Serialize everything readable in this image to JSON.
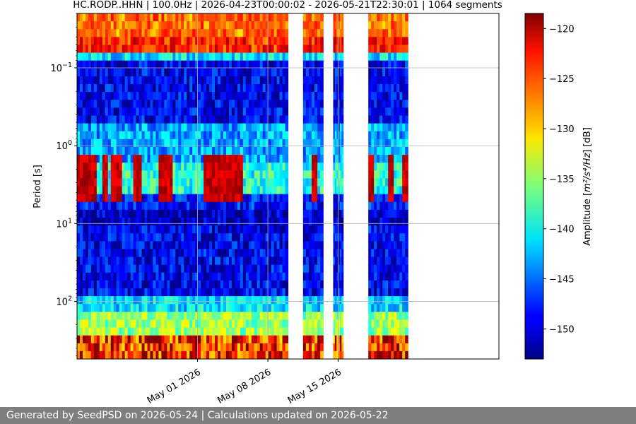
{
  "chart_data": {
    "type": "heatmap",
    "title": "HC.RODP..HHN | 100.0Hz | 2026-04-23T00:00:02 - 2026-05-21T22:30:01 | 1064 segments",
    "ylabel": "Period [s]",
    "y_scale": "log",
    "y_inverted": true,
    "ylim": [
      0.02,
      550
    ],
    "y_ticks": [
      {
        "value": 0.1,
        "base": "10",
        "exp": "−1"
      },
      {
        "value": 1,
        "base": "10",
        "exp": "0"
      },
      {
        "value": 10,
        "base": "10",
        "exp": "1"
      },
      {
        "value": 100,
        "base": "10",
        "exp": "2"
      }
    ],
    "x_start": "2026-04-23T00:00:02",
    "x_end": "2026-05-21T22:30:01",
    "xlim": [
      "2026-04-19",
      "2026-05-31"
    ],
    "x_ticks": [
      {
        "date": "2026-05-01",
        "label": "May 01 2026"
      },
      {
        "date": "2026-05-08",
        "label": "May 08 2026"
      },
      {
        "date": "2026-05-15",
        "label": "May 15 2026"
      }
    ],
    "grid": true,
    "colorbar": {
      "label_pre": "Amplitude [",
      "label_math": "m²/s⁴/Hz",
      "label_post": "] [dB]",
      "vmin": -153,
      "vmax": -118.5,
      "ticks": [
        "−120",
        "−125",
        "−130",
        "−135",
        "−140",
        "−145",
        "−150"
      ],
      "tick_values": [
        -120,
        -125,
        -130,
        -135,
        -140,
        -145,
        -150
      ],
      "colormap": "jet"
    },
    "data_intervals": [
      [
        "2026-04-19",
        "2026-05-10"
      ],
      [
        "2026-05-11T12:00",
        "2026-05-13T12:00"
      ],
      [
        "2026-05-14T12:00",
        "2026-05-15T12:00"
      ],
      [
        "2026-05-18",
        "2026-05-21T22:30"
      ]
    ],
    "microseism_strong": [
      [
        "2026-04-19",
        "2026-04-21"
      ],
      [
        "2026-04-21T12:00",
        "2026-04-22"
      ],
      [
        "2026-04-22T12:00",
        "2026-04-23T12:00"
      ],
      [
        "2026-04-24T12:00",
        "2026-04-25T12:00"
      ],
      [
        "2026-04-27",
        "2026-04-28T12:00"
      ],
      [
        "2026-05-01T12:00",
        "2026-05-05T12:00"
      ],
      [
        "2026-05-12T12:00",
        "2026-05-13"
      ],
      [
        "2026-05-18",
        "2026-05-18T12:00"
      ],
      [
        "2026-05-20",
        "2026-05-20T12:00"
      ],
      [
        "2026-05-21T12:00",
        "2026-05-21T22:30"
      ]
    ]
  },
  "footer": {
    "text": "Generated by SeedPSD on 2026-05-24 | Calculations updated on 2026-05-22"
  }
}
